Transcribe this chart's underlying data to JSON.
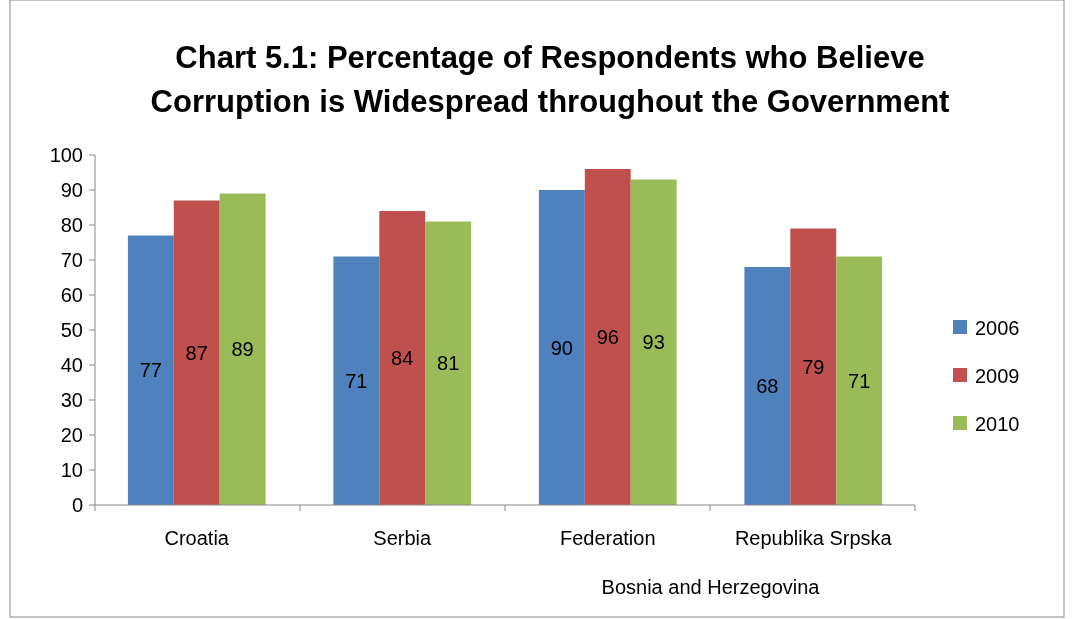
{
  "chart_data": {
    "type": "bar",
    "title": "Chart 5.1: Percentage of Respondents who Believe Corruption is Widespread throughout the Government",
    "categories": [
      "Croatia",
      "Serbia",
      "Federation",
      "Republika Srpska"
    ],
    "series": [
      {
        "name": "2006",
        "color": "#4f81bd",
        "values": [
          77,
          71,
          90,
          68
        ]
      },
      {
        "name": "2009",
        "color": "#c0504d",
        "values": [
          87,
          84,
          96,
          79
        ]
      },
      {
        "name": "2010",
        "color": "#9bbb59",
        "values": [
          89,
          81,
          93,
          71
        ]
      }
    ],
    "ylim": [
      0,
      100
    ],
    "yticks": [
      0,
      10,
      20,
      30,
      40,
      50,
      60,
      70,
      80,
      90,
      100
    ],
    "grid": false,
    "legend": "right",
    "data_labels": true,
    "annotations": [
      "Bosnia and Herzegovina"
    ]
  }
}
